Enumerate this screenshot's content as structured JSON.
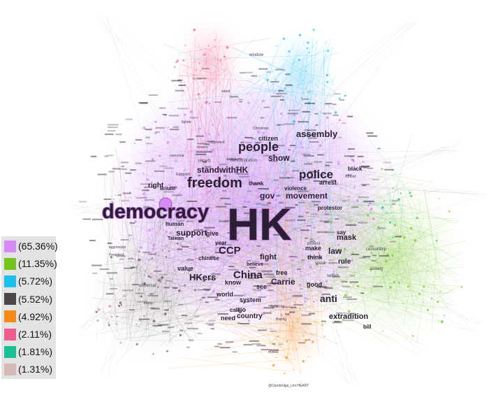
{
  "legend": [
    {
      "label": "(65.36%)",
      "color": "#d78cf5"
    },
    {
      "label": "(11.35%)",
      "color": "#72c31a"
    },
    {
      "label": "(5.72%)",
      "color": "#1ac0ee"
    },
    {
      "label": "(5.52%)",
      "color": "#4d4646"
    },
    {
      "label": "(4.92%)",
      "color": "#f78a14"
    },
    {
      "label": "(2.11%)",
      "color": "#ef5b8d"
    },
    {
      "label": "(1.81%)",
      "color": "#1bbf96"
    },
    {
      "label": "(1.31%)",
      "color": "#d5b9b5"
    }
  ],
  "words": [
    {
      "t": "HK",
      "c": "#d78cf5"
    },
    {
      "t": "democracy",
      "c": "#d78cf5"
    },
    {
      "t": "freedom",
      "c": "#d78cf5"
    },
    {
      "t": "people",
      "c": "#d78cf5"
    },
    {
      "t": "police",
      "c": "#d78cf5"
    },
    {
      "t": "assembly",
      "c": "#d78cf5"
    },
    {
      "t": "CCP",
      "c": "#d78cf5"
    },
    {
      "t": "China",
      "c": "#d78cf5"
    },
    {
      "t": "anti",
      "c": "#72c31a"
    },
    {
      "t": "HKers",
      "c": "#d78cf5"
    },
    {
      "t": "standwithHK",
      "c": "#d78cf5"
    },
    {
      "t": "movement",
      "c": "#d78cf5"
    },
    {
      "t": "gov",
      "c": "#d78cf5"
    },
    {
      "t": "show",
      "c": "#d78cf5"
    },
    {
      "t": "support",
      "c": "#d78cf5"
    },
    {
      "t": "fight",
      "c": "#d78cf5"
    },
    {
      "t": "Carrie",
      "c": "#d78cf5"
    },
    {
      "t": "extradition",
      "c": "#72c31a"
    },
    {
      "t": "mask",
      "c": "#72c31a"
    },
    {
      "t": "law",
      "c": "#72c31a"
    },
    {
      "t": "rule",
      "c": "#72c31a"
    },
    {
      "t": "right",
      "c": "#d78cf5"
    },
    {
      "t": "value",
      "c": "#d78cf5"
    },
    {
      "t": "world",
      "c": "#d78cf5"
    },
    {
      "t": "know",
      "c": "#d78cf5"
    },
    {
      "t": "free",
      "c": "#d78cf5"
    },
    {
      "t": "system",
      "c": "#d78cf5"
    },
    {
      "t": "country",
      "c": "#f78a14"
    },
    {
      "t": "good",
      "c": "#d78cf5"
    },
    {
      "t": "bill",
      "c": "#72c31a"
    },
    {
      "t": "arrest",
      "c": "#d78cf5"
    },
    {
      "t": "black",
      "c": "#d78cf5"
    },
    {
      "t": "citizen",
      "c": "#d78cf5"
    },
    {
      "t": "human",
      "c": "#d78cf5"
    },
    {
      "t": "give",
      "c": "#d78cf5"
    },
    {
      "t": "year",
      "c": "#d78cf5"
    },
    {
      "t": "chinese",
      "c": "#d78cf5"
    },
    {
      "t": "make",
      "c": "#d78cf5"
    },
    {
      "t": "think",
      "c": "#d78cf5"
    },
    {
      "t": "need",
      "c": "#f78a14"
    },
    {
      "t": "thank",
      "c": "#d78cf5"
    },
    {
      "t": "violence",
      "c": "#d78cf5"
    },
    {
      "t": "say",
      "c": "#d78cf5"
    },
    {
      "t": "go",
      "c": "#d78cf5"
    },
    {
      "t": "see",
      "c": "#d78cf5"
    },
    {
      "t": "protestor",
      "c": "#d78cf5"
    },
    {
      "t": "call",
      "c": "#d78cf5"
    },
    {
      "t": "believe",
      "c": "#d78cf5"
    },
    {
      "t": "window",
      "c": "#ef5b8d"
    },
    {
      "t": "fighter",
      "c": "#d78cf5"
    },
    {
      "t": "stand",
      "c": "#d78cf5"
    },
    {
      "t": "universal",
      "c": "#4d4646"
    },
    {
      "t": "review",
      "c": "#f78a14"
    },
    {
      "t": "Taiwan",
      "c": "#d78cf5"
    },
    {
      "t": "Britain",
      "c": "#d78cf5"
    },
    {
      "t": "HKerS",
      "c": "#d78cf5"
    },
    {
      "t": "demonstration",
      "c": "#d78cf5"
    },
    {
      "t": "protest",
      "c": "#d78cf5"
    },
    {
      "t": "tyranny",
      "c": "#d78cf5"
    },
    {
      "t": "everyone",
      "c": "#d78cf5"
    },
    {
      "t": "happen",
      "c": "#d78cf5"
    },
    {
      "t": "officer",
      "c": "#d78cf5"
    },
    {
      "t": "speak",
      "c": "#d78cf5"
    },
    {
      "t": "censorship",
      "c": "#72c31a"
    },
    {
      "t": "society",
      "c": "#72c31a"
    },
    {
      "t": "selfish",
      "c": "#72c31a"
    },
    {
      "t": "trump",
      "c": "#4d4646"
    },
    {
      "t": "aggression",
      "c": "#4d4646"
    },
    {
      "t": "President",
      "c": "#4d4646"
    },
    {
      "t": "Beijing",
      "c": "#d78cf5"
    },
    {
      "t": "Christmas",
      "c": "#d78cf5"
    },
    {
      "t": "HKprotest",
      "c": "#d78cf5"
    }
  ],
  "credit": "@Cambridge_Uni  HEART"
}
